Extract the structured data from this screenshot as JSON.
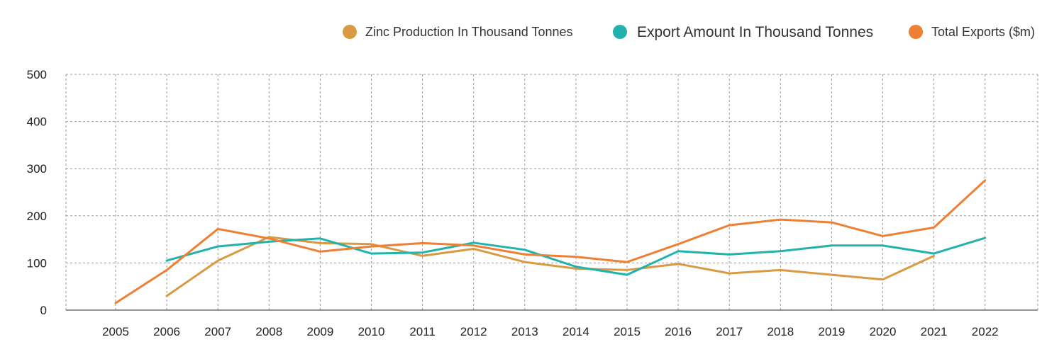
{
  "chart_data": {
    "type": "line",
    "title": "",
    "xlabel": "",
    "ylabel": "",
    "x": [
      "2005",
      "2006",
      "2007",
      "2008",
      "2009",
      "2010",
      "2011",
      "2012",
      "2013",
      "2014",
      "2015",
      "2016",
      "2017",
      "2018",
      "2019",
      "2020",
      "2021",
      "2022"
    ],
    "ylim": [
      0,
      500
    ],
    "yticks": [
      0,
      100,
      200,
      300,
      400,
      500
    ],
    "grid": true,
    "legend_position": "top-right",
    "series": [
      {
        "name": "Zinc Production In Thousand Tonnes",
        "color": "#D99A43",
        "values": [
          null,
          30,
          105,
          155,
          142,
          140,
          115,
          130,
          102,
          88,
          85,
          98,
          78,
          85,
          75,
          65,
          115,
          null
        ]
      },
      {
        "name": "Export Amount In Thousand Tonnes",
        "color": "#22B2AC",
        "values": [
          null,
          105,
          135,
          145,
          152,
          120,
          122,
          143,
          128,
          92,
          75,
          125,
          118,
          125,
          137,
          137,
          120,
          153
        ]
      },
      {
        "name": "Total Exports ($m)",
        "color": "#EE7F33",
        "values": [
          15,
          85,
          172,
          152,
          124,
          135,
          142,
          137,
          118,
          113,
          102,
          140,
          180,
          192,
          186,
          157,
          175,
          275
        ]
      }
    ]
  }
}
